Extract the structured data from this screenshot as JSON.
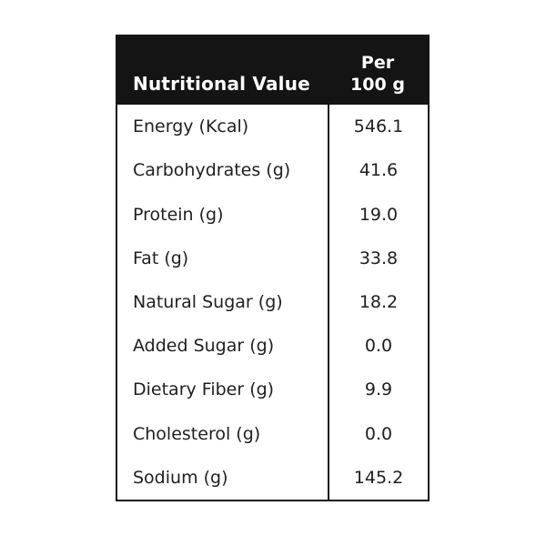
{
  "header": {
    "title": "Nutritional Value",
    "per_line1": "Per",
    "per_line2": "100 g"
  },
  "rows": [
    {
      "label": "Energy (Kcal)",
      "value": "546.1"
    },
    {
      "label": "Carbohydrates (g)",
      "value": "41.6"
    },
    {
      "label": "Protein (g)",
      "value": "19.0"
    },
    {
      "label": "Fat (g)",
      "value": "33.8"
    },
    {
      "label": "Natural Sugar (g)",
      "value": "18.2"
    },
    {
      "label": "Added Sugar (g)",
      "value": "0.0"
    },
    {
      "label": "Dietary Fiber (g)",
      "value": "9.9"
    },
    {
      "label": "Cholesterol (g)",
      "value": "0.0"
    },
    {
      "label": "Sodium (g)",
      "value": "145.2"
    }
  ],
  "colors": {
    "header_bg": "#141414",
    "border": "#161616",
    "header_text": "#ffffff",
    "body_text": "#1f1f1f",
    "background": "#ffffff"
  }
}
